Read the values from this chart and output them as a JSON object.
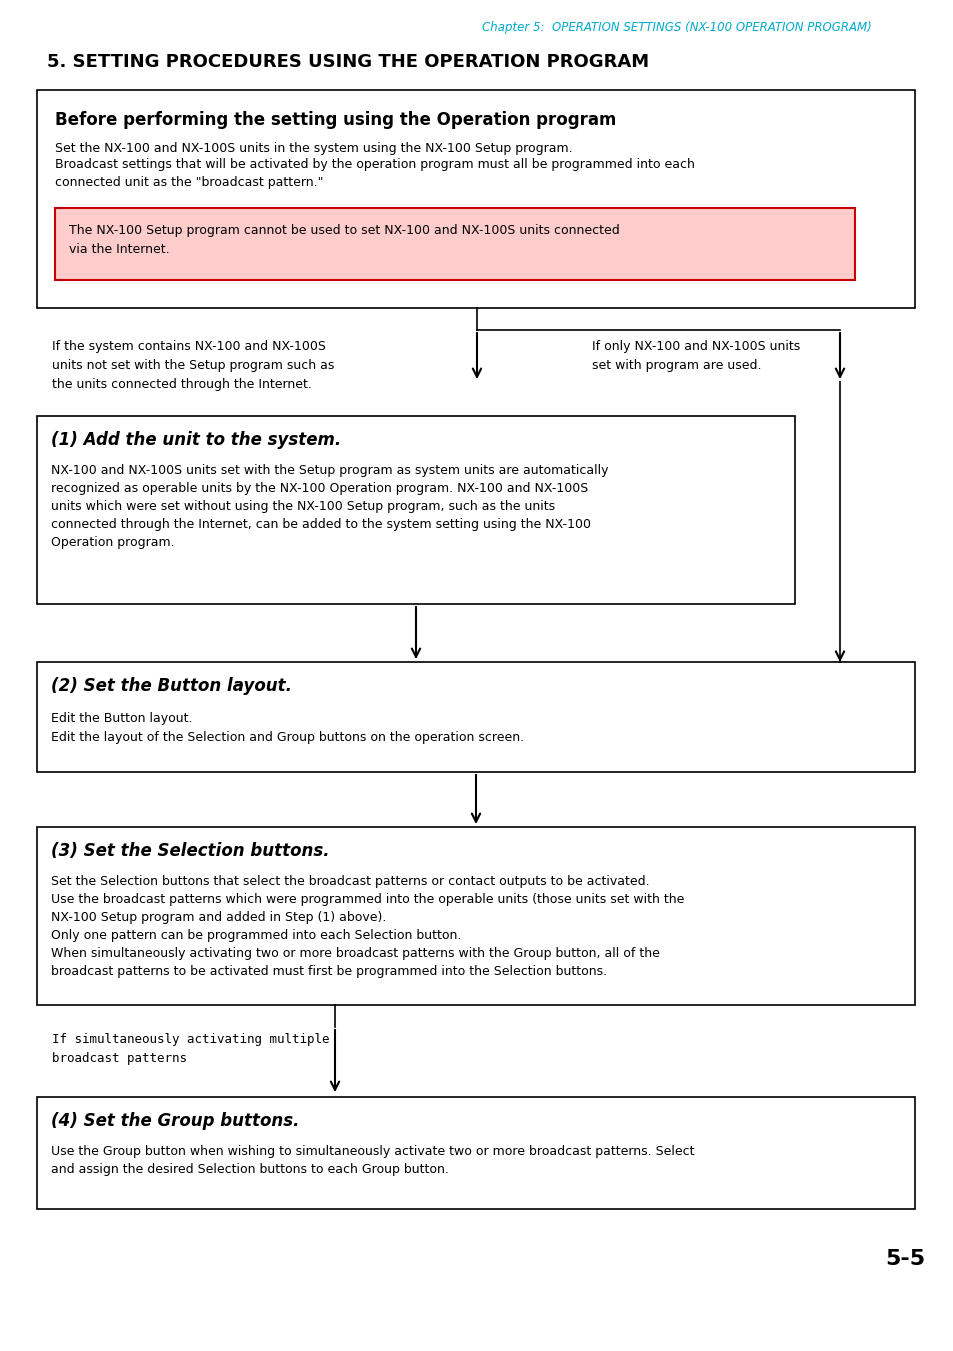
{
  "page_header": "Chapter 5:  OPERATION SETTINGS (NX-100 OPERATION PROGRAM)",
  "header_color": "#00AACC",
  "section_title": "5. SETTING PROCEDURES USING THE OPERATION PROGRAM",
  "page_number": "5-5",
  "bg_color": "#FFFFFF",
  "text_color": "#000000",
  "box0_title": "Before performing the setting using the Operation program",
  "box0_body1": "Set the NX-100 and NX-100S units in the system using the NX-100 Setup program.",
  "box0_body2": "Broadcast settings that will be activated by the operation program must all be programmed into each\nconnected unit as the \"broadcast pattern.\"",
  "warning_text": "The NX-100 Setup program cannot be used to set NX-100 and NX-100S units connected\nvia the Internet.",
  "warning_bg": "#FFCCCC",
  "warning_border": "#CC0000",
  "branch_left_text": "If the system contains NX-100 and NX-100S\nunits not set with the Setup program such as\nthe units connected through the Internet.",
  "branch_right_text": "If only NX-100 and NX-100S units\nset with program are used.",
  "box1_title": "(1) Add the unit to the system.",
  "box1_body": "NX-100 and NX-100S units set with the Setup program as system units are automatically\nrecognized as operable units by the NX-100 Operation program. NX-100 and NX-100S\nunits which were set without using the NX-100 Setup program, such as the units\nconnected through the Internet, can be added to the system setting using the NX-100\nOperation program.",
  "box2_title": "(2) Set the Button layout.",
  "box2_body": "Edit the Button layout.\nEdit the layout of the Selection and Group buttons on the operation screen.",
  "box3_title": "(3) Set the Selection buttons.",
  "box3_body": "Set the Selection buttons that select the broadcast patterns or contact outputs to be activated.\nUse the broadcast patterns which were programmed into the operable units (those units set with the\nNX-100 Setup program and added in Step (1) above).\nOnly one pattern can be programmed into each Selection button.\nWhen simultaneously activating two or more broadcast patterns with the Group button, all of the\nbroadcast patterns to be activated must first be programmed into the Selection buttons.",
  "branch2_left_text": "If simultaneously activating multiple\nbroadcast patterns",
  "box4_title": "(4) Set the Group buttons.",
  "box4_body": "Use the Group button when wishing to simultaneously activate two or more broadcast patterns. Select\nand assign the desired Selection buttons to each Group button."
}
